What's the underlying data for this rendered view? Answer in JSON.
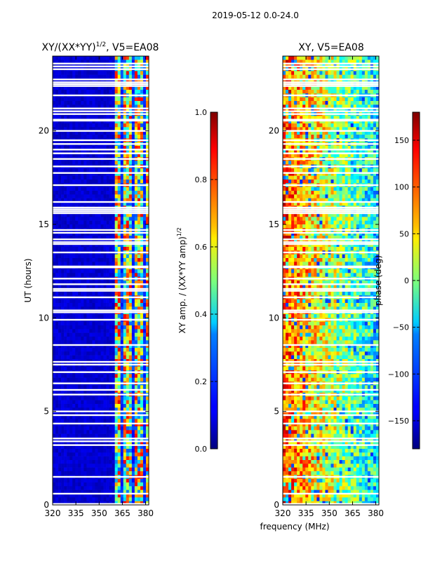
{
  "figure": {
    "suptitle": "2019-05-12 0.0-24.0",
    "xlabel": "frequency (MHz)"
  },
  "chart_data": [
    {
      "type": "heatmap",
      "title_main": "XY/(XX*YY)",
      "title_sup": "1/2",
      "title_tail": ", V5=EA08",
      "xlabel": "",
      "ylabel": "UT (hours)",
      "xlim": [
        320,
        382
      ],
      "ylim": [
        0,
        24
      ],
      "xticks": [
        320,
        335,
        350,
        365,
        380
      ],
      "yticks": [
        0,
        5,
        10,
        15,
        20
      ],
      "colorbar": {
        "label_main": "XY amp. / (XX*YY amp)",
        "label_sup": "1/2",
        "range": [
          0.0,
          1.0
        ],
        "ticks": [
          "0.0",
          "0.2",
          "0.4",
          "0.6",
          "0.8",
          "1.0"
        ],
        "tick_values": [
          0.0,
          0.2,
          0.4,
          0.6,
          0.8,
          1.0
        ]
      },
      "colormap": "jet",
      "description_bands": {
        "low_freq_mhz": [
          320,
          360
        ],
        "high_freq_mhz": [
          360,
          382
        ],
        "low_band_typical_value": 0.05,
        "high_band_value_range": [
          0.2,
          0.9
        ]
      }
    },
    {
      "type": "heatmap",
      "title_main": "XY, V5=EA08",
      "xlabel": "",
      "ylabel": "",
      "xlim": [
        320,
        382
      ],
      "ylim": [
        0,
        24
      ],
      "xticks": [
        320,
        335,
        350,
        365,
        380
      ],
      "yticks": [
        0,
        5,
        10,
        15,
        20
      ],
      "colorbar": {
        "label_main": "phase (deg)",
        "range": [
          -180,
          180
        ],
        "ticks": [
          "−150",
          "−100",
          "−50",
          "0",
          "50",
          "100",
          "150"
        ],
        "tick_values": [
          -150,
          -100,
          -50,
          0,
          50,
          100,
          150
        ]
      },
      "colormap": "jet"
    }
  ],
  "flagged_ut_hours": [
    0.05,
    0.6,
    1.5,
    3.2,
    3.4,
    3.55,
    4.35,
    4.8,
    5.0,
    5.9,
    6.15,
    6.5,
    7.1,
    7.5,
    7.65,
    8.55,
    9.9,
    10.3,
    10.4,
    11.1,
    11.45,
    11.55,
    11.8,
    12.1,
    12.7,
    12.75,
    13.5,
    13.95,
    14.05,
    14.2,
    14.55,
    14.7,
    15.6,
    15.7,
    15.8,
    15.9,
    16.2,
    17.1,
    17.75,
    18.1,
    18.5,
    18.8,
    19.0,
    19.3,
    19.5,
    20.0,
    20.55,
    20.6,
    20.9,
    21.05,
    21.2,
    21.9,
    22.4,
    22.5,
    22.6,
    22.75,
    23.3,
    23.45,
    23.6
  ]
}
